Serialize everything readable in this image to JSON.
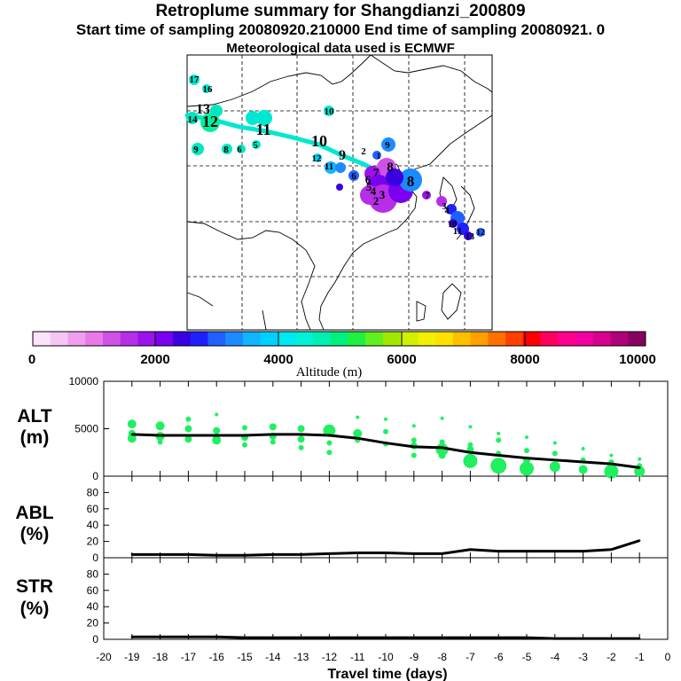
{
  "header": {
    "title": "Retroplume summary for Shangdianzi_200809",
    "sampling_line": "Start time of sampling 20080920.210000     End time of sampling 20080921.     0",
    "met_line": "Meteorological data used is ECMWF"
  },
  "colorbar": {
    "ticks": [
      "0",
      "2000",
      "4000",
      "6000",
      "8000",
      "10000"
    ],
    "label": "Altitude (m)",
    "colors": [
      "#fbe3fb",
      "#f5c6f5",
      "#ee9fee",
      "#e77ae7",
      "#cf52e7",
      "#b72ee7",
      "#9b12ef",
      "#7a00ef",
      "#3a00e0",
      "#2020ff",
      "#2060ff",
      "#1a8cff",
      "#10b4ff",
      "#00d0ff",
      "#00e8f0",
      "#00f0d8",
      "#00f0b0",
      "#00f080",
      "#20f040",
      "#60f020",
      "#a0e800",
      "#d0f000",
      "#f0f000",
      "#ffe000",
      "#ffc000",
      "#ffa000",
      "#ff7000",
      "#ff4000",
      "#ff0000",
      "#ff0060",
      "#ff0090",
      "#f000a0",
      "#d80090",
      "#b0007a",
      "#880060"
    ]
  },
  "map": {
    "labels": [
      "17",
      "16",
      "13",
      "12",
      "11",
      "14",
      "9",
      "8",
      "6",
      "5",
      "10",
      "12",
      "11",
      "10",
      "9",
      "2",
      "1",
      "8",
      "7",
      "6",
      "5",
      "4",
      "3",
      "2",
      "6",
      "9",
      "8",
      "7",
      "3",
      "4",
      "10",
      "11",
      "12",
      "13"
    ]
  },
  "panels": {
    "alt": {
      "name": "ALT",
      "unit": "(m)"
    },
    "abl": {
      "name": "ABL",
      "unit": "(%)"
    },
    "str": {
      "name": "STR",
      "unit": "(%)"
    }
  },
  "chart_data": [
    {
      "type": "line",
      "title": "ALT",
      "ylabel": "ALT (m)",
      "xlabel": "Travel time (days)",
      "xlim": [
        -20,
        0
      ],
      "ylim": [
        0,
        10000
      ],
      "yticks": [
        "0",
        "5000",
        "10000"
      ],
      "x": [
        -19,
        -18,
        -17,
        -16,
        -15,
        -14,
        -13,
        -12,
        -11,
        -10,
        -9,
        -8,
        -7,
        -6,
        -5,
        -4,
        -3,
        -2,
        -1
      ],
      "values": [
        4400,
        4300,
        4300,
        4300,
        4300,
        4400,
        4400,
        4300,
        4000,
        3500,
        3100,
        3000,
        2500,
        2200,
        1900,
        1700,
        1500,
        1300,
        900
      ],
      "scatter_dots": [
        {
          "x": -19,
          "y": 5500,
          "s": 5
        },
        {
          "x": -19,
          "y": 4000,
          "s": 5
        },
        {
          "x": -19,
          "y": 4500,
          "s": 4
        },
        {
          "x": -18,
          "y": 5300,
          "s": 5
        },
        {
          "x": -18,
          "y": 4200,
          "s": 5
        },
        {
          "x": -18,
          "y": 3600,
          "s": 3
        },
        {
          "x": -17,
          "y": 6000,
          "s": 3
        },
        {
          "x": -17,
          "y": 5000,
          "s": 4
        },
        {
          "x": -17,
          "y": 3900,
          "s": 4
        },
        {
          "x": -16,
          "y": 6500,
          "s": 2
        },
        {
          "x": -16,
          "y": 4800,
          "s": 4
        },
        {
          "x": -16,
          "y": 3800,
          "s": 5
        },
        {
          "x": -15,
          "y": 5100,
          "s": 3
        },
        {
          "x": -15,
          "y": 4100,
          "s": 4
        },
        {
          "x": -15,
          "y": 3300,
          "s": 3
        },
        {
          "x": -14,
          "y": 5200,
          "s": 4
        },
        {
          "x": -14,
          "y": 4200,
          "s": 4
        },
        {
          "x": -14,
          "y": 3600,
          "s": 3
        },
        {
          "x": -13,
          "y": 5000,
          "s": 4
        },
        {
          "x": -13,
          "y": 3900,
          "s": 4
        },
        {
          "x": -13,
          "y": 3000,
          "s": 3
        },
        {
          "x": -12,
          "y": 4800,
          "s": 7
        },
        {
          "x": -12,
          "y": 3500,
          "s": 3
        },
        {
          "x": -12,
          "y": 2500,
          "s": 3
        },
        {
          "x": -11,
          "y": 6200,
          "s": 2
        },
        {
          "x": -11,
          "y": 4500,
          "s": 5
        },
        {
          "x": -11,
          "y": 3800,
          "s": 3
        },
        {
          "x": -10,
          "y": 6000,
          "s": 2
        },
        {
          "x": -10,
          "y": 4700,
          "s": 3
        },
        {
          "x": -10,
          "y": 3400,
          "s": 3
        },
        {
          "x": -9,
          "y": 5300,
          "s": 2
        },
        {
          "x": -9,
          "y": 3800,
          "s": 3
        },
        {
          "x": -9,
          "y": 3200,
          "s": 4
        },
        {
          "x": -9,
          "y": 2200,
          "s": 3
        },
        {
          "x": -8,
          "y": 6100,
          "s": 2
        },
        {
          "x": -8,
          "y": 2800,
          "s": 7
        },
        {
          "x": -8,
          "y": 3600,
          "s": 3
        },
        {
          "x": -8,
          "y": 2200,
          "s": 4
        },
        {
          "x": -7,
          "y": 5200,
          "s": 2
        },
        {
          "x": -7,
          "y": 3300,
          "s": 3
        },
        {
          "x": -7,
          "y": 2800,
          "s": 4
        },
        {
          "x": -7,
          "y": 1600,
          "s": 8
        },
        {
          "x": -6,
          "y": 4500,
          "s": 2
        },
        {
          "x": -6,
          "y": 3800,
          "s": 3
        },
        {
          "x": -6,
          "y": 2400,
          "s": 3
        },
        {
          "x": -6,
          "y": 1100,
          "s": 9
        },
        {
          "x": -5,
          "y": 4100,
          "s": 2
        },
        {
          "x": -5,
          "y": 2700,
          "s": 3
        },
        {
          "x": -5,
          "y": 1700,
          "s": 4
        },
        {
          "x": -5,
          "y": 800,
          "s": 8
        },
        {
          "x": -4,
          "y": 3500,
          "s": 2
        },
        {
          "x": -4,
          "y": 2400,
          "s": 3
        },
        {
          "x": -4,
          "y": 1000,
          "s": 6
        },
        {
          "x": -3,
          "y": 2900,
          "s": 2
        },
        {
          "x": -3,
          "y": 1700,
          "s": 3
        },
        {
          "x": -3,
          "y": 700,
          "s": 5
        },
        {
          "x": -2,
          "y": 2200,
          "s": 2
        },
        {
          "x": -2,
          "y": 1500,
          "s": 3
        },
        {
          "x": -2,
          "y": 500,
          "s": 8
        },
        {
          "x": -1,
          "y": 1800,
          "s": 2
        },
        {
          "x": -1,
          "y": 1100,
          "s": 3
        },
        {
          "x": -1,
          "y": 500,
          "s": 6
        }
      ]
    },
    {
      "type": "line",
      "title": "ABL",
      "ylabel": "ABL (%)",
      "xlim": [
        -20,
        0
      ],
      "ylim": [
        0,
        100
      ],
      "yticks": [
        "0",
        "20",
        "40",
        "60",
        "80"
      ],
      "x": [
        -19,
        -18,
        -17,
        -16,
        -15,
        -14,
        -13,
        -12,
        -11,
        -10,
        -9,
        -8,
        -7,
        -6,
        -5,
        -4,
        -3,
        -2,
        -1
      ],
      "values": [
        4,
        4,
        4,
        3,
        3,
        4,
        4,
        5,
        6,
        6,
        5,
        5,
        10,
        8,
        8,
        8,
        8,
        10,
        21
      ]
    },
    {
      "type": "line",
      "title": "STR",
      "ylabel": "STR (%)",
      "xlabel": "Travel time (days)",
      "xlim": [
        -20,
        0
      ],
      "ylim": [
        0,
        100
      ],
      "yticks": [
        "0",
        "20",
        "40",
        "60",
        "80"
      ],
      "xticks": [
        "-20",
        "-19",
        "-18",
        "-17",
        "-16",
        "-15",
        "-14",
        "-13",
        "-12",
        "-11",
        "-10",
        "-9",
        "-8",
        "-7",
        "-6",
        "-5",
        "-4",
        "-3",
        "-2",
        "-1",
        "0"
      ],
      "x": [
        -19,
        -18,
        -17,
        -16,
        -15,
        -14,
        -13,
        -12,
        -11,
        -10,
        -9,
        -8,
        -7,
        -6,
        -5,
        -4,
        -3,
        -2,
        -1
      ],
      "values": [
        3,
        3,
        3,
        3,
        2,
        2,
        2,
        2,
        2,
        2,
        2,
        2,
        2,
        2,
        2,
        1,
        1,
        1,
        1
      ]
    }
  ]
}
